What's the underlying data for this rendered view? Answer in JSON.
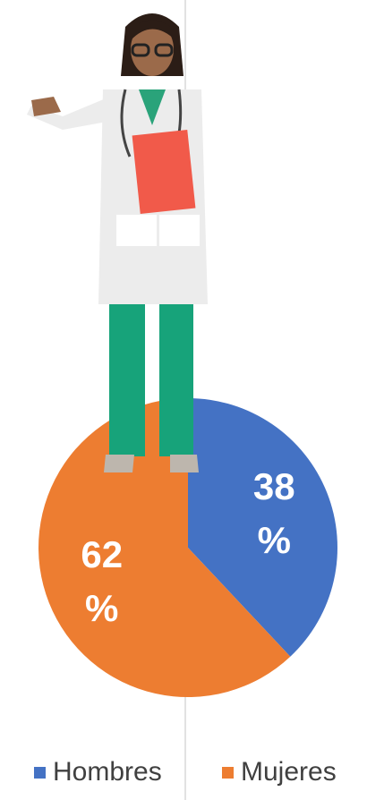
{
  "chart_data": {
    "type": "pie",
    "categories": [
      "Hombres",
      "Mujeres"
    ],
    "values": [
      38,
      62
    ],
    "value_labels": [
      "38 %",
      "62 %"
    ],
    "colors": [
      "#4472c4",
      "#ed7d31"
    ]
  }
}
